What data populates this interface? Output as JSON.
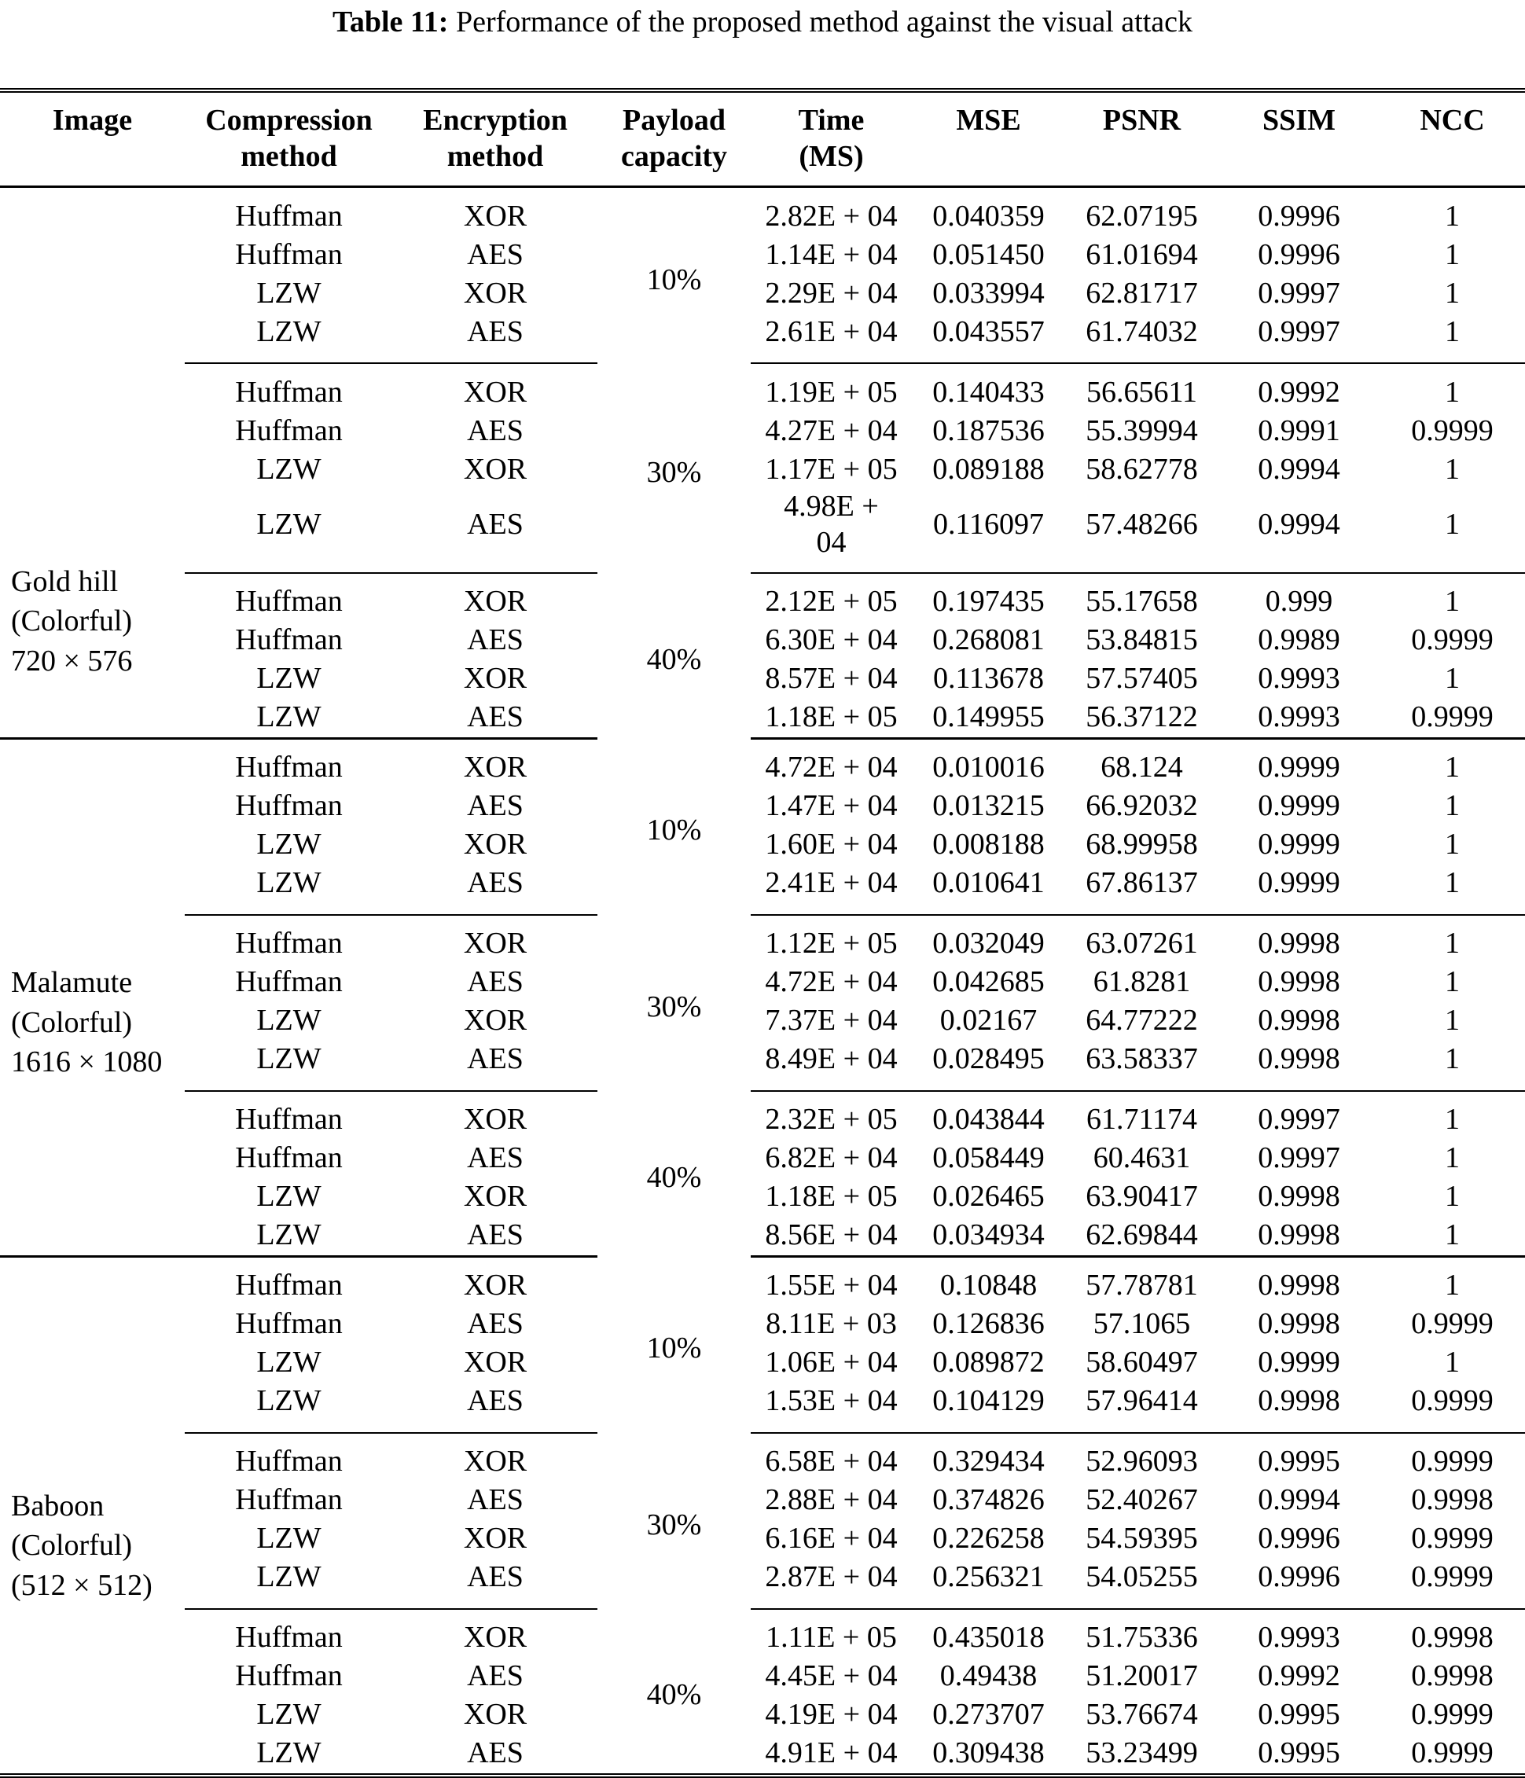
{
  "title": {
    "label": "Table 11:",
    "text": " Performance of the proposed method against the visual attack"
  },
  "colors": {
    "background": "#ffffff",
    "text": "#000000",
    "rule": "#000000"
  },
  "table": {
    "columns": [
      "Image",
      "Compression\nmethod",
      "Encryption\nmethod",
      "Payload\ncapacity",
      "Time\n(MS)",
      "MSE",
      "PSNR",
      "SSIM",
      "NCC"
    ],
    "sections": [
      {
        "image": "Gold hill\n(Colorful)\n720 × 576",
        "groups": [
          {
            "payload": "10%",
            "rows": [
              [
                "Huffman",
                "XOR",
                "2.82E + 04",
                "0.040359",
                "62.07195",
                "0.9996",
                "1"
              ],
              [
                "Huffman",
                "AES",
                "1.14E + 04",
                "0.051450",
                "61.01694",
                "0.9996",
                "1"
              ],
              [
                "LZW",
                "XOR",
                "2.29E + 04",
                "0.033994",
                "62.81717",
                "0.9997",
                "1"
              ],
              [
                "LZW",
                "AES",
                "2.61E + 04",
                "0.043557",
                "61.74032",
                "0.9997",
                "1"
              ]
            ]
          },
          {
            "payload": "30%",
            "rows": [
              [
                "Huffman",
                "XOR",
                "1.19E + 05",
                "0.140433",
                "56.65611",
                "0.9992",
                "1"
              ],
              [
                "Huffman",
                "AES",
                "4.27E + 04",
                "0.187536",
                "55.39994",
                "0.9991",
                "0.9999"
              ],
              [
                "LZW",
                "XOR",
                "1.17E + 05",
                "0.089188",
                "58.62778",
                "0.9994",
                "1"
              ],
              [
                "LZW",
                "AES",
                "4.98E +\n04",
                "0.116097",
                "57.48266",
                "0.9994",
                "1"
              ]
            ]
          },
          {
            "payload": "40%",
            "rows": [
              [
                "Huffman",
                "XOR",
                "2.12E + 05",
                "0.197435",
                "55.17658",
                "0.999",
                "1"
              ],
              [
                "Huffman",
                "AES",
                "6.30E + 04",
                "0.268081",
                "53.84815",
                "0.9989",
                "0.9999"
              ],
              [
                "LZW",
                "XOR",
                "8.57E + 04",
                "0.113678",
                "57.57405",
                "0.9993",
                "1"
              ],
              [
                "LZW",
                "AES",
                "1.18E + 05",
                "0.149955",
                "56.37122",
                "0.9993",
                "0.9999"
              ]
            ]
          }
        ]
      },
      {
        "image": "Malamute\n(Colorful)\n1616 × 1080",
        "groups": [
          {
            "payload": "10%",
            "rows": [
              [
                "Huffman",
                "XOR",
                "4.72E + 04",
                "0.010016",
                "68.124",
                "0.9999",
                "1"
              ],
              [
                "Huffman",
                "AES",
                "1.47E + 04",
                "0.013215",
                "66.92032",
                "0.9999",
                "1"
              ],
              [
                "LZW",
                "XOR",
                "1.60E + 04",
                "0.008188",
                "68.99958",
                "0.9999",
                "1"
              ],
              [
                "LZW",
                "AES",
                "2.41E + 04",
                "0.010641",
                "67.86137",
                "0.9999",
                "1"
              ]
            ]
          },
          {
            "payload": "30%",
            "rows": [
              [
                "Huffman",
                "XOR",
                "1.12E + 05",
                "0.032049",
                "63.07261",
                "0.9998",
                "1"
              ],
              [
                "Huffman",
                "AES",
                "4.72E + 04",
                "0.042685",
                "61.8281",
                "0.9998",
                "1"
              ],
              [
                "LZW",
                "XOR",
                "7.37E + 04",
                "0.02167",
                "64.77222",
                "0.9998",
                "1"
              ],
              [
                "LZW",
                "AES",
                "8.49E + 04",
                "0.028495",
                "63.58337",
                "0.9998",
                "1"
              ]
            ]
          },
          {
            "payload": "40%",
            "rows": [
              [
                "Huffman",
                "XOR",
                "2.32E + 05",
                "0.043844",
                "61.71174",
                "0.9997",
                "1"
              ],
              [
                "Huffman",
                "AES",
                "6.82E + 04",
                "0.058449",
                "60.4631",
                "0.9997",
                "1"
              ],
              [
                "LZW",
                "XOR",
                "1.18E + 05",
                "0.026465",
                "63.90417",
                "0.9998",
                "1"
              ],
              [
                "LZW",
                "AES",
                "8.56E + 04",
                "0.034934",
                "62.69844",
                "0.9998",
                "1"
              ]
            ]
          }
        ]
      },
      {
        "image": "Baboon\n(Colorful)\n(512 × 512)",
        "groups": [
          {
            "payload": "10%",
            "rows": [
              [
                "Huffman",
                "XOR",
                "1.55E + 04",
                "0.10848",
                "57.78781",
                "0.9998",
                "1"
              ],
              [
                "Huffman",
                "AES",
                "8.11E + 03",
                "0.126836",
                "57.1065",
                "0.9998",
                "0.9999"
              ],
              [
                "LZW",
                "XOR",
                "1.06E + 04",
                "0.089872",
                "58.60497",
                "0.9999",
                "1"
              ],
              [
                "LZW",
                "AES",
                "1.53E + 04",
                "0.104129",
                "57.96414",
                "0.9998",
                "0.9999"
              ]
            ]
          },
          {
            "payload": "30%",
            "rows": [
              [
                "Huffman",
                "XOR",
                "6.58E + 04",
                "0.329434",
                "52.96093",
                "0.9995",
                "0.9999"
              ],
              [
                "Huffman",
                "AES",
                "2.88E + 04",
                "0.374826",
                "52.40267",
                "0.9994",
                "0.9998"
              ],
              [
                "LZW",
                "XOR",
                "6.16E + 04",
                "0.226258",
                "54.59395",
                "0.9996",
                "0.9999"
              ],
              [
                "LZW",
                "AES",
                "2.87E + 04",
                "0.256321",
                "54.05255",
                "0.9996",
                "0.9999"
              ]
            ]
          },
          {
            "payload": "40%",
            "rows": [
              [
                "Huffman",
                "XOR",
                "1.11E + 05",
                "0.435018",
                "51.75336",
                "0.9993",
                "0.9998"
              ],
              [
                "Huffman",
                "AES",
                "4.45E + 04",
                "0.49438",
                "51.20017",
                "0.9992",
                "0.9998"
              ],
              [
                "LZW",
                "XOR",
                "4.19E + 04",
                "0.273707",
                "53.76674",
                "0.9995",
                "0.9999"
              ],
              [
                "LZW",
                "AES",
                "4.91E + 04",
                "0.309438",
                "53.23499",
                "0.9995",
                "0.9999"
              ]
            ]
          }
        ]
      }
    ]
  }
}
